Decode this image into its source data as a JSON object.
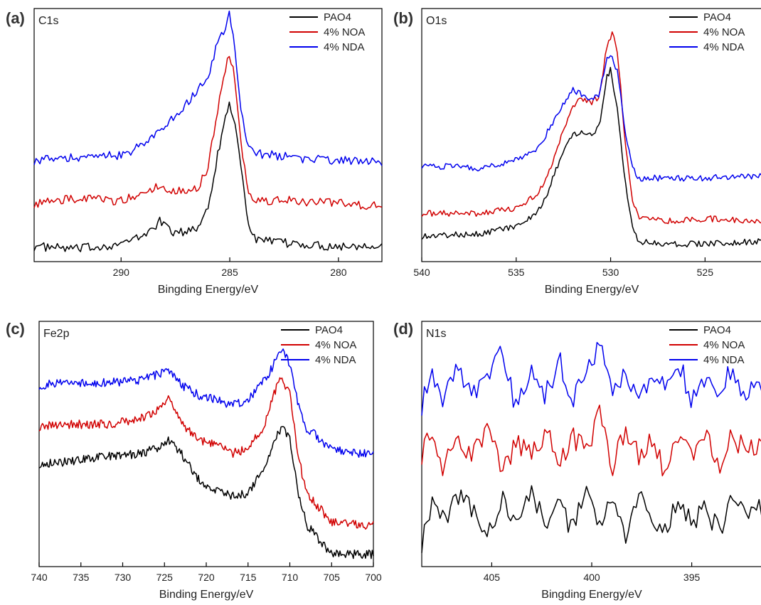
{
  "colors": {
    "PAO4": "#000000",
    "4% NOA": "#d10000",
    "4% NDA": "#0000ee"
  },
  "chart_data": [
    {
      "type": "line",
      "panel": "(a)",
      "element": "C1s",
      "xlabel": "Bingding Energy/eV",
      "xlim": [
        294,
        278
      ],
      "xticks": [
        290,
        285,
        280
      ],
      "legend": [
        "PAO4",
        "4% NOA",
        "4% NDA"
      ],
      "legend_position": "top-right",
      "series": [
        {
          "name": "PAO4",
          "x": [
            294,
            292,
            290,
            289,
            288.2,
            287.5,
            286.5,
            286,
            285.6,
            285.2,
            285.0,
            284.8,
            284.5,
            284.2,
            284,
            283.5,
            282,
            280,
            278
          ],
          "y": [
            0.06,
            0.05,
            0.07,
            0.1,
            0.16,
            0.11,
            0.13,
            0.22,
            0.4,
            0.58,
            0.62,
            0.56,
            0.4,
            0.18,
            0.1,
            0.08,
            0.07,
            0.06,
            0.07
          ]
        },
        {
          "name": "4% NOA",
          "x": [
            294,
            292,
            290,
            289,
            288.2,
            287.5,
            286.5,
            286,
            285.6,
            285.2,
            285.0,
            284.8,
            284.5,
            284.2,
            284,
            283.5,
            282,
            280,
            278
          ],
          "y": [
            0.23,
            0.25,
            0.24,
            0.27,
            0.3,
            0.28,
            0.29,
            0.37,
            0.58,
            0.76,
            0.82,
            0.74,
            0.5,
            0.28,
            0.25,
            0.24,
            0.24,
            0.23,
            0.22
          ]
        },
        {
          "name": "4% NDA",
          "x": [
            294,
            292,
            290,
            289,
            288,
            287,
            286.5,
            286,
            285.6,
            285.2,
            285.0,
            284.8,
            284.5,
            284.2,
            284,
            283,
            282,
            280,
            278
          ],
          "y": [
            0.4,
            0.41,
            0.42,
            0.46,
            0.53,
            0.62,
            0.68,
            0.72,
            0.86,
            0.93,
            0.98,
            0.88,
            0.62,
            0.46,
            0.43,
            0.42,
            0.41,
            0.4,
            0.39
          ]
        }
      ]
    },
    {
      "type": "line",
      "panel": "(b)",
      "element": "O1s",
      "xlabel": "Binding Energy/eV",
      "xlim": [
        540,
        522
      ],
      "xticks": [
        540,
        535,
        530,
        525
      ],
      "legend": [
        "PAO4",
        "4% NOA",
        "4% NDA"
      ],
      "legend_position": "top-right",
      "series": [
        {
          "name": "PAO4",
          "x": [
            540,
            537,
            535,
            534,
            533.5,
            533,
            532.5,
            532,
            531.5,
            531,
            530.6,
            530.2,
            530.0,
            529.6,
            529.2,
            528.8,
            528.5,
            527,
            525,
            522
          ],
          "y": [
            0.1,
            0.11,
            0.14,
            0.18,
            0.24,
            0.34,
            0.44,
            0.5,
            0.52,
            0.5,
            0.54,
            0.73,
            0.76,
            0.58,
            0.3,
            0.12,
            0.08,
            0.07,
            0.07,
            0.08
          ]
        },
        {
          "name": "4% NOA",
          "x": [
            540,
            537,
            535,
            534,
            533.5,
            533,
            532.5,
            532,
            531.5,
            531,
            530.6,
            530.2,
            529.9,
            529.6,
            529.2,
            528.8,
            528.5,
            527,
            525,
            522
          ],
          "y": [
            0.19,
            0.19,
            0.21,
            0.26,
            0.31,
            0.4,
            0.52,
            0.62,
            0.64,
            0.63,
            0.65,
            0.85,
            0.91,
            0.8,
            0.45,
            0.22,
            0.18,
            0.16,
            0.17,
            0.16
          ]
        },
        {
          "name": "4% NDA",
          "x": [
            540,
            537,
            535,
            534,
            533.5,
            533,
            532.5,
            532,
            531.5,
            531,
            530.6,
            530.2,
            530.0,
            529.6,
            529.2,
            528.8,
            528.5,
            527,
            525,
            522
          ],
          "y": [
            0.38,
            0.37,
            0.4,
            0.44,
            0.49,
            0.56,
            0.62,
            0.68,
            0.66,
            0.64,
            0.66,
            0.8,
            0.82,
            0.74,
            0.5,
            0.37,
            0.33,
            0.33,
            0.33,
            0.34
          ]
        }
      ]
    },
    {
      "type": "line",
      "panel": "(c)",
      "element": "Fe2p",
      "xlabel": "Binding Energy/eV",
      "xlim": [
        740,
        700
      ],
      "xticks": [
        740,
        735,
        730,
        725,
        720,
        715,
        710,
        705,
        700
      ],
      "legend": [
        "PAO4",
        "4% NOA",
        "4% NDA"
      ],
      "legend_position": "top-right",
      "series": [
        {
          "name": "PAO4",
          "x": [
            740,
            736,
            732,
            728,
            726,
            724.5,
            723,
            721,
            719,
            717,
            715,
            713,
            712,
            711,
            710,
            709,
            708,
            707,
            706,
            705,
            702,
            700
          ],
          "y": [
            0.42,
            0.43,
            0.45,
            0.46,
            0.48,
            0.52,
            0.46,
            0.36,
            0.31,
            0.29,
            0.3,
            0.4,
            0.5,
            0.57,
            0.52,
            0.3,
            0.17,
            0.13,
            0.09,
            0.05,
            0.05,
            0.05
          ]
        },
        {
          "name": "4% NOA",
          "x": [
            740,
            736,
            732,
            728,
            726,
            724.5,
            723,
            721,
            719,
            717,
            715,
            713,
            712,
            711,
            710,
            709,
            708,
            707,
            706,
            705,
            702,
            700
          ],
          "y": [
            0.57,
            0.58,
            0.58,
            0.6,
            0.63,
            0.69,
            0.58,
            0.52,
            0.5,
            0.46,
            0.48,
            0.58,
            0.7,
            0.77,
            0.7,
            0.45,
            0.3,
            0.26,
            0.22,
            0.18,
            0.17,
            0.17
          ]
        },
        {
          "name": "4% NDA",
          "x": [
            740,
            736,
            732,
            728,
            726,
            724.5,
            723,
            721,
            719,
            717,
            715,
            713,
            712,
            711,
            710,
            709,
            708,
            707,
            706,
            705,
            702,
            700
          ],
          "y": [
            0.74,
            0.75,
            0.75,
            0.76,
            0.78,
            0.8,
            0.74,
            0.7,
            0.68,
            0.66,
            0.68,
            0.76,
            0.82,
            0.88,
            0.83,
            0.66,
            0.56,
            0.54,
            0.5,
            0.48,
            0.46,
            0.47
          ]
        }
      ]
    },
    {
      "type": "line",
      "panel": "(d)",
      "element": "N1s",
      "xlabel": "Bingding Energy/eV",
      "xlim": [
        408.5,
        391.5
      ],
      "xticks": [
        405,
        400,
        395
      ],
      "legend": [
        "PAO4",
        "4% NOA",
        "4% NDA"
      ],
      "legend_position": "top-right",
      "series": [
        {
          "name": "PAO4",
          "x": [
            408.5,
            408,
            407.4,
            406.7,
            406,
            405.2,
            404.5,
            403.8,
            403,
            402.3,
            401.6,
            401,
            400.3,
            399.6,
            399,
            398.3,
            397.6,
            397,
            396.3,
            395.6,
            395,
            394.3,
            393.6,
            393,
            392.3,
            391.5
          ],
          "y": [
            0.1,
            0.26,
            0.18,
            0.3,
            0.22,
            0.14,
            0.27,
            0.17,
            0.29,
            0.19,
            0.24,
            0.15,
            0.3,
            0.18,
            0.25,
            0.13,
            0.28,
            0.2,
            0.16,
            0.26,
            0.19,
            0.23,
            0.14,
            0.29,
            0.2,
            0.24
          ]
        },
        {
          "name": "4% NOA",
          "x": [
            408.5,
            408,
            407.4,
            406.7,
            406,
            405.2,
            404.5,
            403.8,
            403,
            402.3,
            401.6,
            401,
            400.3,
            399.6,
            399,
            398.3,
            397.6,
            397,
            396.3,
            395.6,
            395,
            394.3,
            393.6,
            393,
            392.3,
            391.5
          ],
          "y": [
            0.46,
            0.55,
            0.4,
            0.52,
            0.44,
            0.58,
            0.37,
            0.5,
            0.45,
            0.56,
            0.41,
            0.53,
            0.47,
            0.62,
            0.4,
            0.55,
            0.44,
            0.51,
            0.38,
            0.57,
            0.45,
            0.52,
            0.42,
            0.54,
            0.47,
            0.5
          ]
        },
        {
          "name": "4% NDA",
          "x": [
            408.5,
            408,
            407.4,
            406.7,
            406,
            405.2,
            404.5,
            403.8,
            403,
            402.3,
            401.6,
            401,
            400.3,
            399.6,
            399,
            398.3,
            397.6,
            397,
            396.3,
            395.6,
            395,
            394.3,
            393.6,
            393,
            392.3,
            391.5
          ],
          "y": [
            0.66,
            0.78,
            0.68,
            0.82,
            0.7,
            0.75,
            0.9,
            0.64,
            0.8,
            0.7,
            0.84,
            0.67,
            0.77,
            0.92,
            0.7,
            0.8,
            0.68,
            0.79,
            0.72,
            0.83,
            0.66,
            0.78,
            0.71,
            0.82,
            0.69,
            0.75
          ]
        }
      ]
    }
  ]
}
